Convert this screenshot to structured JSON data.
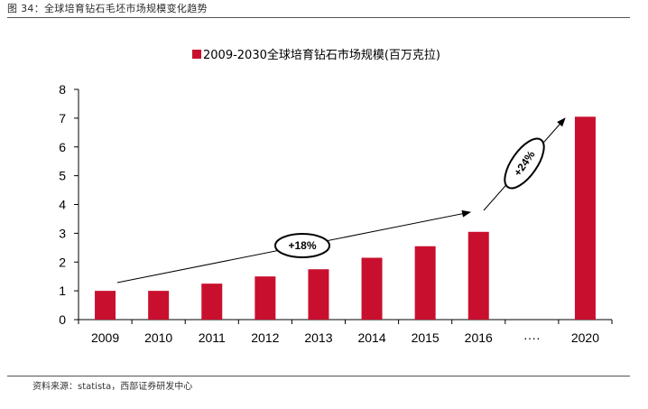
{
  "figure": {
    "title": "图 34：全球培育钻石毛坯市场规模变化趋势",
    "source": "资料来源：statista，西部证券研发中心"
  },
  "chart_data": {
    "type": "bar",
    "legend": "2009-2030全球培育钻石市场规模(百万克拉)",
    "categories": [
      "2009",
      "2010",
      "2011",
      "2012",
      "2013",
      "2014",
      "2015",
      "2016",
      "····",
      "2020"
    ],
    "values": [
      1.0,
      1.0,
      1.25,
      1.5,
      1.75,
      2.15,
      2.55,
      3.05,
      null,
      7.05
    ],
    "ylim": [
      0,
      8
    ],
    "yticks": [
      0,
      1,
      2,
      3,
      4,
      5,
      6,
      7,
      8
    ],
    "xlabel": "",
    "ylabel": "",
    "legend_position": "top-center",
    "grid": false,
    "annotations": [
      {
        "label": "+18%",
        "from": "2009",
        "to": "2016"
      },
      {
        "label": "+24%",
        "from": "2016",
        "to": "2020"
      }
    ],
    "bar_color": "#c8102e"
  }
}
